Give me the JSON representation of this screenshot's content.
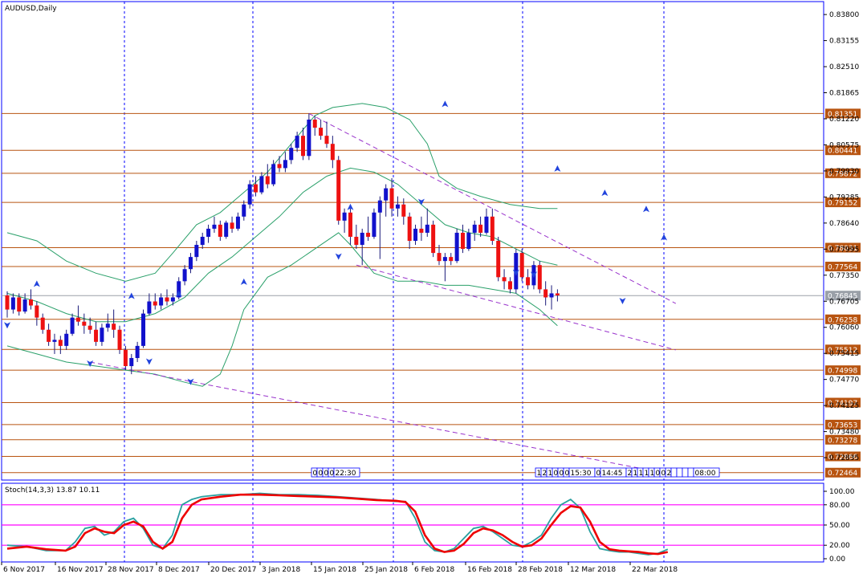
{
  "window_title": "AUDUSD,Daily",
  "indicator_label": "Stoch(14,3,3) 13.87 10.11",
  "colors": {
    "frame": "#0000ff",
    "bull_body": "#1111cc",
    "bear_body": "#ee1111",
    "wick": "#1a1a7a",
    "level_line": "#b85410",
    "level_label_bg": "#b85410",
    "level_label_text": "#ffffff",
    "band": "#2aa06a",
    "trend": "#9933cc",
    "stoch_main": "#2aa0a0",
    "stoch_signal": "#ee0000",
    "stoch_level": "#ff00ff",
    "price_label_bg": "#9aa0a8",
    "fractal": "#2244dd"
  },
  "price_axis_ticks": [
    "0.83800",
    "0.83155",
    "0.82510",
    "0.81865",
    "0.81220",
    "0.80575",
    "0.79930",
    "0.79285",
    "0.78640",
    "0.77995",
    "0.77350",
    "0.76705",
    "0.76060",
    "0.75415",
    "0.74770",
    "0.74125",
    "0.73480",
    "0.72835"
  ],
  "current_price": "0.76845",
  "date_labels": [
    "6 Nov 2017",
    "16 Nov 2017",
    "28 Nov 2017",
    "8 Dec 2017",
    "20 Dec 2017",
    "3 Jan 2018",
    "15 Jan 2018",
    "25 Jan 2018",
    "6 Feb 2018",
    "16 Feb 2018",
    "28 Feb 2018",
    "12 Mar 2018",
    "22 Mar 2018"
  ],
  "stoch_axis_ticks": [
    "100.00",
    "80.00",
    "50.00",
    "20.00",
    "0.00"
  ],
  "time_markers_top": [
    "0",
    "0",
    "0",
    "0",
    "22:30"
  ],
  "time_markers_right": [
    "1",
    "2",
    "1",
    "0",
    "0",
    "0",
    "15:30",
    "0",
    "14:45",
    "2",
    "1",
    "1",
    "1",
    "1",
    "0",
    "0",
    "2",
    "",
    "",
    "",
    "",
    "08:00"
  ],
  "chart_data": {
    "type": "candlestick",
    "symbol": "AUDUSD",
    "timeframe": "Daily",
    "horizontal_levels": [
      {
        "price": 0.81351,
        "label": "0.81351"
      },
      {
        "price": 0.80441,
        "label": "0.80441"
      },
      {
        "price": 0.79872,
        "label": "0.79872"
      },
      {
        "price": 0.79152,
        "label": "0.79152"
      },
      {
        "price": 0.78031,
        "label": "0.78031"
      },
      {
        "price": 0.77564,
        "label": "0.77564"
      },
      {
        "price": 0.76845,
        "label": "0.76845"
      },
      {
        "price": 0.76258,
        "label": "0.76258"
      },
      {
        "price": 0.75512,
        "label": "0.75512"
      },
      {
        "price": 0.74998,
        "label": "0.74998"
      },
      {
        "price": 0.74197,
        "label": "0.74197"
      },
      {
        "price": 0.73653,
        "label": "0.73653"
      },
      {
        "price": 0.73278,
        "label": "0.73278"
      },
      {
        "price": 0.72866,
        "label": "0.72866"
      },
      {
        "price": 0.72464,
        "label": "0.72464"
      }
    ],
    "y_range": [
      0.7228,
      0.8412
    ],
    "stoch_levels": [
      80,
      50,
      20
    ],
    "stoch_range": [
      0,
      100
    ],
    "candles": [
      [
        0.7685,
        0.7695,
        0.763,
        0.765
      ],
      [
        0.765,
        0.769,
        0.764,
        0.768
      ],
      [
        0.768,
        0.769,
        0.7635,
        0.7645
      ],
      [
        0.7645,
        0.769,
        0.764,
        0.7675
      ],
      [
        0.7675,
        0.77,
        0.765,
        0.766
      ],
      [
        0.766,
        0.767,
        0.761,
        0.763
      ],
      [
        0.763,
        0.764,
        0.759,
        0.76
      ],
      [
        0.76,
        0.7615,
        0.756,
        0.757
      ],
      [
        0.757,
        0.759,
        0.754,
        0.7575
      ],
      [
        0.7575,
        0.7585,
        0.754,
        0.756
      ],
      [
        0.756,
        0.76,
        0.755,
        0.759
      ],
      [
        0.759,
        0.764,
        0.7585,
        0.763
      ],
      [
        0.763,
        0.766,
        0.761,
        0.762
      ],
      [
        0.762,
        0.764,
        0.759,
        0.761
      ],
      [
        0.761,
        0.763,
        0.759,
        0.76
      ],
      [
        0.76,
        0.762,
        0.756,
        0.757
      ],
      [
        0.757,
        0.7615,
        0.756,
        0.7605
      ],
      [
        0.7605,
        0.764,
        0.7595,
        0.7615
      ],
      [
        0.7615,
        0.765,
        0.758,
        0.76
      ],
      [
        0.76,
        0.761,
        0.754,
        0.755
      ],
      [
        0.755,
        0.756,
        0.75,
        0.751
      ],
      [
        0.751,
        0.754,
        0.749,
        0.753
      ],
      [
        0.753,
        0.757,
        0.752,
        0.756
      ],
      [
        0.756,
        0.765,
        0.7555,
        0.764
      ],
      [
        0.764,
        0.769,
        0.7635,
        0.767
      ],
      [
        0.767,
        0.769,
        0.765,
        0.766
      ],
      [
        0.766,
        0.769,
        0.765,
        0.768
      ],
      [
        0.768,
        0.77,
        0.766,
        0.767
      ],
      [
        0.767,
        0.769,
        0.766,
        0.768
      ],
      [
        0.768,
        0.773,
        0.7675,
        0.772
      ],
      [
        0.772,
        0.776,
        0.771,
        0.775
      ],
      [
        0.775,
        0.779,
        0.774,
        0.778
      ],
      [
        0.778,
        0.782,
        0.777,
        0.781
      ],
      [
        0.781,
        0.784,
        0.78,
        0.783
      ],
      [
        0.783,
        0.786,
        0.7815,
        0.785
      ],
      [
        0.785,
        0.788,
        0.784,
        0.786
      ],
      [
        0.786,
        0.787,
        0.782,
        0.783
      ],
      [
        0.783,
        0.787,
        0.7825,
        0.7865
      ],
      [
        0.7865,
        0.788,
        0.784,
        0.785
      ],
      [
        0.785,
        0.789,
        0.7845,
        0.788
      ],
      [
        0.788,
        0.792,
        0.787,
        0.791
      ],
      [
        0.791,
        0.797,
        0.79,
        0.796
      ],
      [
        0.796,
        0.798,
        0.793,
        0.794
      ],
      [
        0.794,
        0.799,
        0.7935,
        0.798
      ],
      [
        0.798,
        0.801,
        0.795,
        0.796
      ],
      [
        0.796,
        0.802,
        0.7955,
        0.801
      ],
      [
        0.801,
        0.803,
        0.799,
        0.8
      ],
      [
        0.8,
        0.804,
        0.799,
        0.802
      ],
      [
        0.802,
        0.806,
        0.801,
        0.805
      ],
      [
        0.805,
        0.809,
        0.804,
        0.808
      ],
      [
        0.808,
        0.81,
        0.802,
        0.803
      ],
      [
        0.803,
        0.8135,
        0.802,
        0.812
      ],
      [
        0.812,
        0.813,
        0.808,
        0.81
      ],
      [
        0.81,
        0.812,
        0.807,
        0.808
      ],
      [
        0.808,
        0.8115,
        0.805,
        0.806
      ],
      [
        0.806,
        0.808,
        0.8,
        0.802
      ],
      [
        0.802,
        0.803,
        0.786,
        0.787
      ],
      [
        0.787,
        0.79,
        0.784,
        0.789
      ],
      [
        0.789,
        0.79,
        0.781,
        0.783
      ],
      [
        0.783,
        0.786,
        0.78,
        0.781
      ],
      [
        0.781,
        0.785,
        0.776,
        0.784
      ],
      [
        0.784,
        0.788,
        0.782,
        0.783
      ],
      [
        0.783,
        0.79,
        0.7825,
        0.789
      ],
      [
        0.789,
        0.793,
        0.7775,
        0.792
      ],
      [
        0.792,
        0.796,
        0.788,
        0.795
      ],
      [
        0.795,
        0.7975,
        0.788,
        0.79
      ],
      [
        0.79,
        0.793,
        0.788,
        0.791
      ],
      [
        0.791,
        0.7925,
        0.786,
        0.788
      ],
      [
        0.788,
        0.789,
        0.78,
        0.782
      ],
      [
        0.782,
        0.786,
        0.781,
        0.785
      ],
      [
        0.785,
        0.788,
        0.782,
        0.784
      ],
      [
        0.784,
        0.79,
        0.783,
        0.786
      ],
      [
        0.786,
        0.787,
        0.778,
        0.779
      ],
      [
        0.779,
        0.781,
        0.776,
        0.777
      ],
      [
        0.777,
        0.779,
        0.772,
        0.778
      ],
      [
        0.778,
        0.779,
        0.776,
        0.777
      ],
      [
        0.777,
        0.785,
        0.7765,
        0.784
      ],
      [
        0.784,
        0.786,
        0.779,
        0.78
      ],
      [
        0.78,
        0.785,
        0.7795,
        0.784
      ],
      [
        0.784,
        0.787,
        0.782,
        0.786
      ],
      [
        0.786,
        0.788,
        0.783,
        0.784
      ],
      [
        0.784,
        0.79,
        0.7835,
        0.788
      ],
      [
        0.788,
        0.79,
        0.781,
        0.782
      ],
      [
        0.782,
        0.783,
        0.772,
        0.773
      ],
      [
        0.773,
        0.775,
        0.77,
        0.772
      ],
      [
        0.772,
        0.773,
        0.769,
        0.77
      ],
      [
        0.77,
        0.78,
        0.769,
        0.779
      ],
      [
        0.779,
        0.78,
        0.772,
        0.773
      ],
      [
        0.773,
        0.775,
        0.77,
        0.771
      ],
      [
        0.771,
        0.777,
        0.77,
        0.776
      ],
      [
        0.776,
        0.777,
        0.769,
        0.77
      ],
      [
        0.77,
        0.772,
        0.766,
        0.768
      ],
      [
        0.768,
        0.771,
        0.765,
        0.769
      ],
      [
        0.769,
        0.77,
        0.767,
        0.7685
      ]
    ],
    "bollinger": {
      "upper": [
        [
          0,
          0.784
        ],
        [
          5,
          0.782
        ],
        [
          10,
          0.777
        ],
        [
          15,
          0.774
        ],
        [
          20,
          0.772
        ],
        [
          25,
          0.774
        ],
        [
          28,
          0.779
        ],
        [
          32,
          0.786
        ],
        [
          36,
          0.789
        ],
        [
          40,
          0.794
        ],
        [
          44,
          0.799
        ],
        [
          48,
          0.806
        ],
        [
          52,
          0.813
        ],
        [
          55,
          0.815
        ],
        [
          60,
          0.816
        ],
        [
          64,
          0.815
        ],
        [
          68,
          0.812
        ],
        [
          71,
          0.806
        ],
        [
          73,
          0.798
        ],
        [
          76,
          0.795
        ],
        [
          80,
          0.793
        ],
        [
          85,
          0.791
        ],
        [
          90,
          0.79
        ],
        [
          93,
          0.79
        ]
      ],
      "middle": [
        [
          0,
          0.769
        ],
        [
          5,
          0.767
        ],
        [
          10,
          0.764
        ],
        [
          15,
          0.762
        ],
        [
          20,
          0.762
        ],
        [
          25,
          0.764
        ],
        [
          30,
          0.768
        ],
        [
          34,
          0.774
        ],
        [
          38,
          0.778
        ],
        [
          42,
          0.783
        ],
        [
          46,
          0.788
        ],
        [
          50,
          0.794
        ],
        [
          54,
          0.798
        ],
        [
          58,
          0.8
        ],
        [
          62,
          0.799
        ],
        [
          66,
          0.796
        ],
        [
          70,
          0.791
        ],
        [
          74,
          0.786
        ],
        [
          78,
          0.784
        ],
        [
          82,
          0.783
        ],
        [
          86,
          0.78
        ],
        [
          90,
          0.777
        ],
        [
          93,
          0.776
        ]
      ],
      "lower": [
        [
          0,
          0.756
        ],
        [
          5,
          0.754
        ],
        [
          10,
          0.752
        ],
        [
          15,
          0.751
        ],
        [
          20,
          0.75
        ],
        [
          25,
          0.749
        ],
        [
          30,
          0.747
        ],
        [
          33,
          0.746
        ],
        [
          36,
          0.749
        ],
        [
          38,
          0.756
        ],
        [
          40,
          0.765
        ],
        [
          44,
          0.773
        ],
        [
          48,
          0.776
        ],
        [
          52,
          0.78
        ],
        [
          56,
          0.784
        ],
        [
          58,
          0.781
        ],
        [
          62,
          0.774
        ],
        [
          66,
          0.772
        ],
        [
          70,
          0.772
        ],
        [
          74,
          0.771
        ],
        [
          78,
          0.771
        ],
        [
          82,
          0.77
        ],
        [
          86,
          0.769
        ],
        [
          90,
          0.765
        ],
        [
          93,
          0.761
        ]
      ]
    },
    "trendlines": [
      {
        "from": [
          14,
          0.752
        ],
        "to": [
          113,
          0.724
        ]
      },
      {
        "from": [
          51,
          0.8135
        ],
        "to": [
          113,
          0.7665
        ]
      },
      {
        "from": [
          59,
          0.776
        ],
        "to": [
          113,
          0.755
        ]
      }
    ],
    "fractals_up": [
      [
        5,
        0.771
      ],
      [
        21,
        0.768
      ],
      [
        29,
        0.7685
      ],
      [
        40,
        0.7715
      ],
      [
        58,
        0.79
      ],
      [
        74,
        0.8155
      ],
      [
        93,
        0.7995
      ],
      [
        101,
        0.7935
      ],
      [
        108,
        0.7895
      ],
      [
        111,
        0.7825
      ]
    ],
    "fractals_down": [
      [
        0,
        0.7615
      ],
      [
        14,
        0.752
      ],
      [
        24,
        0.7525
      ],
      [
        31,
        0.7475
      ],
      [
        56,
        0.7785
      ],
      [
        70,
        0.792
      ],
      [
        86,
        0.7745
      ],
      [
        89,
        0.774
      ],
      [
        104,
        0.7675
      ]
    ],
    "stoch_main": [
      [
        0,
        20
      ],
      [
        4,
        18
      ],
      [
        8,
        12
      ],
      [
        12,
        12
      ],
      [
        14,
        25
      ],
      [
        16,
        45
      ],
      [
        18,
        48
      ],
      [
        20,
        35
      ],
      [
        22,
        40
      ],
      [
        24,
        55
      ],
      [
        26,
        60
      ],
      [
        28,
        45
      ],
      [
        30,
        20
      ],
      [
        32,
        15
      ],
      [
        34,
        35
      ],
      [
        36,
        80
      ],
      [
        38,
        88
      ],
      [
        40,
        92
      ],
      [
        44,
        95
      ],
      [
        48,
        95
      ],
      [
        52,
        97
      ],
      [
        56,
        95
      ],
      [
        60,
        95
      ],
      [
        64,
        94
      ],
      [
        68,
        92
      ],
      [
        72,
        90
      ],
      [
        76,
        88
      ],
      [
        80,
        85
      ],
      [
        82,
        85
      ],
      [
        84,
        60
      ],
      [
        86,
        25
      ],
      [
        88,
        12
      ],
      [
        90,
        10
      ],
      [
        92,
        15
      ],
      [
        94,
        30
      ],
      [
        96,
        45
      ],
      [
        98,
        48
      ],
      [
        100,
        40
      ],
      [
        102,
        30
      ],
      [
        104,
        20
      ],
      [
        106,
        18
      ],
      [
        108,
        25
      ],
      [
        110,
        35
      ],
      [
        112,
        60
      ],
      [
        114,
        80
      ],
      [
        116,
        88
      ],
      [
        118,
        75
      ],
      [
        120,
        40
      ],
      [
        122,
        15
      ],
      [
        124,
        12
      ],
      [
        126,
        10
      ],
      [
        128,
        10
      ],
      [
        130,
        8
      ],
      [
        132,
        6
      ],
      [
        134,
        8
      ],
      [
        136,
        14
      ]
    ],
    "stoch_signal": [
      [
        0,
        15
      ],
      [
        4,
        18
      ],
      [
        8,
        14
      ],
      [
        12,
        12
      ],
      [
        14,
        18
      ],
      [
        16,
        38
      ],
      [
        18,
        45
      ],
      [
        20,
        40
      ],
      [
        22,
        38
      ],
      [
        24,
        50
      ],
      [
        26,
        55
      ],
      [
        28,
        48
      ],
      [
        30,
        25
      ],
      [
        32,
        15
      ],
      [
        34,
        25
      ],
      [
        36,
        60
      ],
      [
        38,
        80
      ],
      [
        40,
        88
      ],
      [
        44,
        92
      ],
      [
        48,
        95
      ],
      [
        52,
        95
      ],
      [
        56,
        94
      ],
      [
        60,
        93
      ],
      [
        64,
        92
      ],
      [
        68,
        91
      ],
      [
        72,
        89
      ],
      [
        76,
        87
      ],
      [
        80,
        86
      ],
      [
        82,
        84
      ],
      [
        84,
        70
      ],
      [
        86,
        35
      ],
      [
        88,
        15
      ],
      [
        90,
        10
      ],
      [
        92,
        12
      ],
      [
        94,
        22
      ],
      [
        96,
        38
      ],
      [
        98,
        45
      ],
      [
        100,
        42
      ],
      [
        102,
        35
      ],
      [
        104,
        25
      ],
      [
        106,
        18
      ],
      [
        108,
        20
      ],
      [
        110,
        30
      ],
      [
        112,
        50
      ],
      [
        114,
        68
      ],
      [
        116,
        78
      ],
      [
        118,
        76
      ],
      [
        120,
        55
      ],
      [
        122,
        25
      ],
      [
        124,
        14
      ],
      [
        126,
        12
      ],
      [
        128,
        11
      ],
      [
        130,
        10
      ],
      [
        132,
        8
      ],
      [
        134,
        7
      ],
      [
        136,
        10
      ]
    ]
  }
}
